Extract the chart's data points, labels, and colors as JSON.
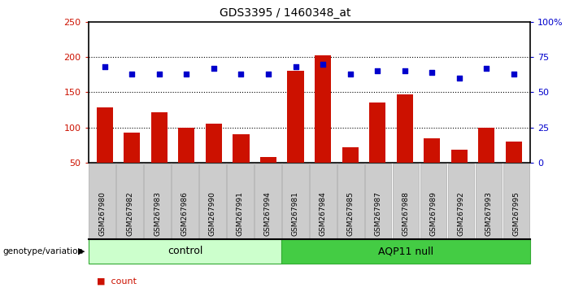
{
  "title": "GDS3395 / 1460348_at",
  "samples": [
    "GSM267980",
    "GSM267982",
    "GSM267983",
    "GSM267986",
    "GSM267990",
    "GSM267991",
    "GSM267994",
    "GSM267981",
    "GSM267984",
    "GSM267985",
    "GSM267987",
    "GSM267988",
    "GSM267989",
    "GSM267992",
    "GSM267993",
    "GSM267995"
  ],
  "counts": [
    128,
    93,
    122,
    100,
    105,
    90,
    58,
    180,
    202,
    72,
    135,
    147,
    85,
    68,
    100,
    80
  ],
  "percentile_ranks": [
    68,
    63,
    63,
    63,
    67,
    63,
    63,
    68,
    70,
    63,
    65,
    65,
    64,
    60,
    67,
    63
  ],
  "n_control": 7,
  "n_aqp11": 9,
  "bar_color": "#cc1100",
  "dot_color": "#0000cc",
  "ylim_left": [
    50,
    250
  ],
  "ylim_right": [
    0,
    100
  ],
  "yticks_left": [
    50,
    100,
    150,
    200,
    250
  ],
  "yticks_right": [
    0,
    25,
    50,
    75,
    100
  ],
  "ytick_right_labels": [
    "0",
    "25",
    "50",
    "75",
    "100%"
  ],
  "grid_vals": [
    100,
    150,
    200
  ],
  "ylabel_left_color": "#cc1100",
  "ylabel_right_color": "#0000cc",
  "control_bg": "#ccffcc",
  "aqp11_bg": "#44cc44",
  "tick_bg": "#cccccc",
  "tick_edge": "#aaaaaa",
  "group_edge": "#33aa33",
  "title_fontsize": 10,
  "bar_width": 0.6,
  "bar_bottom": 50
}
